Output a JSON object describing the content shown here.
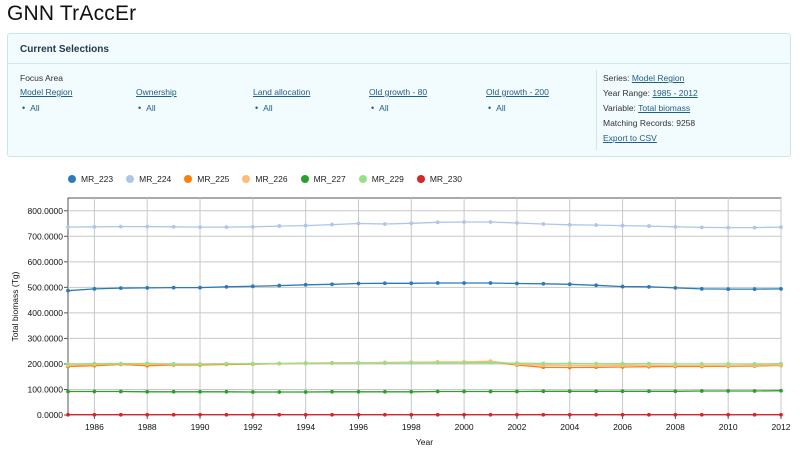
{
  "app": {
    "title": "GNN TrAccEr"
  },
  "selections": {
    "title": "Current Selections",
    "focus_area_label": "Focus Area",
    "filters": [
      {
        "label": "Model Region",
        "value": "All"
      },
      {
        "label": "Ownership",
        "value": "All"
      },
      {
        "label": "Land allocation",
        "value": "All"
      },
      {
        "label": "Old growth - 80",
        "value": "All"
      },
      {
        "label": "Old growth - 200",
        "value": "All"
      }
    ],
    "series_label": "Series:",
    "series_value": "Model Region",
    "year_range_label": "Year Range:",
    "year_range_value": "1985 - 2012",
    "variable_label": "Variable:",
    "variable_value": "Total biomass",
    "matching_records": "Matching Records: 9258",
    "export_label": "Export to CSV"
  },
  "chart_data": {
    "type": "line",
    "xlabel": "Year",
    "ylabel": "Total biomass (Tg)",
    "xlim": [
      1985,
      2012
    ],
    "ylim": [
      0,
      850
    ],
    "x_ticks": [
      1986,
      1988,
      1990,
      1992,
      1994,
      1996,
      1998,
      2000,
      2002,
      2004,
      2006,
      2008,
      2010,
      2012
    ],
    "y_ticks": [
      0,
      100,
      200,
      300,
      400,
      500,
      600,
      700,
      800
    ],
    "y_tick_labels": [
      "0.0000",
      "100.0000",
      "200.0000",
      "300.0000",
      "400.0000",
      "500.0000",
      "600.0000",
      "700.0000",
      "800.0000"
    ],
    "grid": true,
    "legend_position": "top",
    "x": [
      1985,
      1986,
      1987,
      1988,
      1989,
      1990,
      1991,
      1992,
      1993,
      1994,
      1995,
      1996,
      1997,
      1998,
      1999,
      2000,
      2001,
      2002,
      2003,
      2004,
      2005,
      2006,
      2007,
      2008,
      2009,
      2010,
      2011,
      2012
    ],
    "series": [
      {
        "name": "MR_223",
        "color": "#2c7bb6",
        "values": [
          487,
          494,
          497,
          498,
          499,
          499,
          502,
          504,
          507,
          510,
          512,
          515,
          516,
          516,
          517,
          517,
          517,
          515,
          514,
          512,
          508,
          503,
          502,
          498,
          494,
          493,
          493,
          494
        ]
      },
      {
        "name": "MR_224",
        "color": "#aec7e8",
        "values": [
          736,
          737,
          738,
          738,
          737,
          736,
          736,
          737,
          740,
          742,
          746,
          750,
          748,
          751,
          755,
          756,
          756,
          752,
          748,
          745,
          744,
          742,
          740,
          737,
          735,
          734,
          734,
          736
        ]
      },
      {
        "name": "MR_225",
        "color": "#ff7f0e",
        "values": [
          190,
          193,
          198,
          193,
          196,
          196,
          198,
          199,
          201,
          203,
          204,
          204,
          205,
          206,
          207,
          207,
          208,
          196,
          187,
          186,
          187,
          188,
          189,
          190,
          190,
          191,
          192,
          194
        ]
      },
      {
        "name": "MR_226",
        "color": "#ffbb78",
        "values": [
          195,
          198,
          200,
          199,
          199,
          200,
          201,
          200,
          201,
          202,
          203,
          204,
          206,
          206,
          208,
          208,
          211,
          199,
          195,
          194,
          194,
          195,
          194,
          194,
          194,
          194,
          195,
          196
        ]
      },
      {
        "name": "MR_227",
        "color": "#2ca02c",
        "values": [
          92,
          92,
          92,
          91,
          91,
          91,
          91,
          90,
          90,
          90,
          91,
          91,
          91,
          91,
          92,
          92,
          92,
          92,
          93,
          93,
          93,
          93,
          93,
          93,
          94,
          94,
          94,
          95
        ]
      },
      {
        "name": "MR_229",
        "color": "#98df8a",
        "values": [
          200,
          201,
          201,
          202,
          200,
          199,
          200,
          201,
          202,
          202,
          202,
          203,
          203,
          204,
          204,
          204,
          205,
          203,
          202,
          202,
          201,
          201,
          201,
          200,
          200,
          200,
          200,
          201
        ]
      },
      {
        "name": "MR_230",
        "color": "#d62728",
        "values": [
          1,
          1,
          1,
          1,
          1,
          1,
          1,
          1,
          1,
          1,
          1,
          1,
          1,
          1,
          1,
          1,
          1,
          1,
          1,
          1,
          1,
          1,
          1,
          1,
          1,
          1,
          1,
          1
        ]
      }
    ]
  }
}
